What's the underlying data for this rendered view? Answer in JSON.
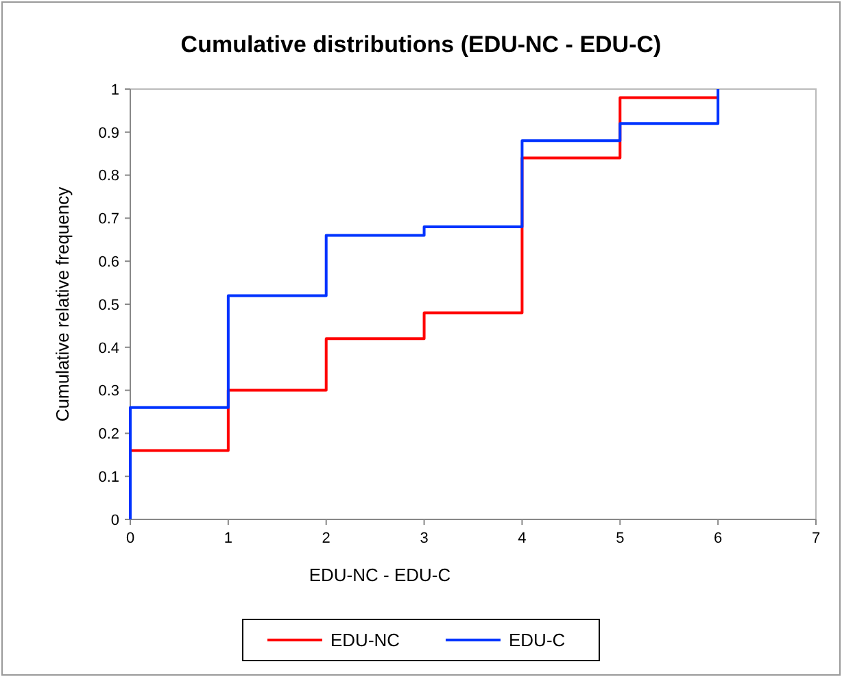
{
  "chart_data": {
    "type": "step",
    "title": "Cumulative distributions (EDU-NC - EDU-C)",
    "xlabel": "EDU-NC - EDU-C",
    "ylabel": "Cumulative relative frequency",
    "x": [
      0,
      0,
      1,
      2,
      3,
      4,
      5,
      6
    ],
    "series": [
      {
        "name": "EDU-NC",
        "color": "#ff0000",
        "values": [
          0,
          0.16,
          0.3,
          0.42,
          0.48,
          0.84,
          0.98,
          0.98
        ]
      },
      {
        "name": "EDU-C",
        "color": "#0033ff",
        "values": [
          0,
          0.26,
          0.52,
          0.66,
          0.68,
          0.88,
          0.92,
          1
        ]
      }
    ],
    "xlim": [
      0,
      7
    ],
    "xticks": [
      0,
      1,
      2,
      3,
      4,
      5,
      6,
      7
    ],
    "ylim": [
      0,
      1
    ],
    "yticks": [
      0,
      0.1,
      0.2,
      0.3,
      0.4,
      0.5,
      0.6,
      0.7,
      0.8,
      0.9,
      1
    ],
    "grid": false,
    "legend": "bottom"
  }
}
